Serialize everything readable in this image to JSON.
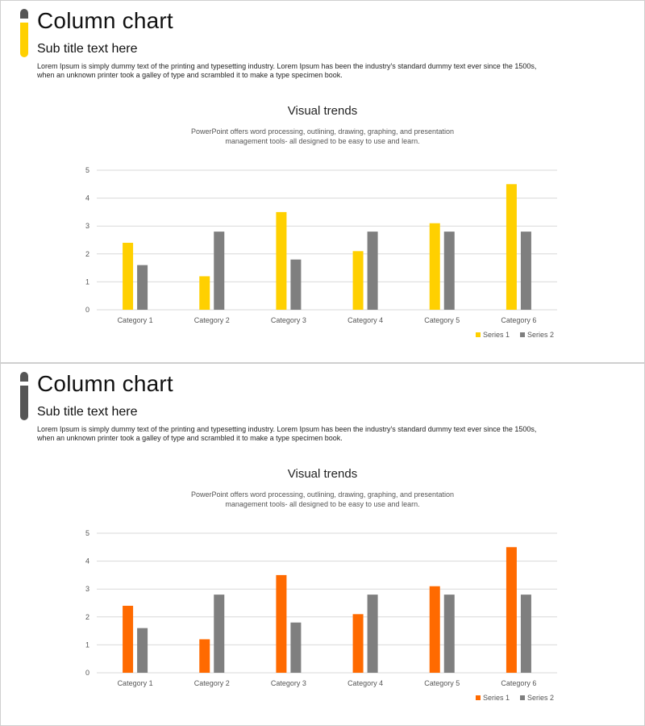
{
  "slides": [
    {
      "title": "Column chart",
      "subtitle": "Sub title text here",
      "body_line1": "Lorem Ipsum is simply dummy text of the printing and typesetting industry. Lorem Ipsum has been the industry's standard dummy text ever since the 1500s,",
      "body_line2": "when an unknown printer took a galley of type and scrambled it to make a type specimen book.",
      "chart_title": "Visual trends",
      "chart_desc_line1": "PowerPoint offers word processing, outlining, drawing, graphing, and presentation",
      "chart_desc_line2": "management tools- all designed to be easy to use and learn.",
      "accent_colors": {
        "top": "#555555",
        "bottom": "#FFD000"
      }
    },
    {
      "title": "Column chart",
      "subtitle": "Sub title text here",
      "body_line1": "Lorem Ipsum is simply dummy text of the printing and typesetting industry. Lorem Ipsum has been the industry's standard dummy text ever since the 1500s,",
      "body_line2": "when an unknown printer took a galley of type and scrambled it to make a type specimen book.",
      "chart_title": "Visual trends",
      "chart_desc_line1": "PowerPoint offers word processing, outlining, drawing, graphing, and presentation",
      "chart_desc_line2": "management tools- all designed to be easy to use and learn.",
      "accent_colors": {
        "top": "#555555",
        "bottom": "#555555"
      }
    }
  ],
  "chart_data": [
    {
      "type": "bar",
      "title": "Visual trends",
      "categories": [
        "Category 1",
        "Category 2",
        "Category 3",
        "Category 4",
        "Category 5",
        "Category 6"
      ],
      "series": [
        {
          "name": "Series 1",
          "values": [
            2.4,
            1.2,
            3.5,
            2.1,
            3.1,
            4.5
          ],
          "color": "#FFD000"
        },
        {
          "name": "Series 2",
          "values": [
            1.6,
            2.8,
            1.8,
            2.8,
            2.8,
            2.8
          ],
          "color": "#7F7F7F"
        }
      ],
      "yticks": [
        "0",
        "1",
        "2",
        "3",
        "4",
        "5"
      ],
      "ylim": [
        0,
        5
      ],
      "grid": true,
      "legend": "bottom-right"
    },
    {
      "type": "bar",
      "title": "Visual trends",
      "categories": [
        "Category 1",
        "Category 2",
        "Category 3",
        "Category 4",
        "Category 5",
        "Category 6"
      ],
      "series": [
        {
          "name": "Series 1",
          "values": [
            2.4,
            1.2,
            3.5,
            2.1,
            3.1,
            4.5
          ],
          "color": "#FF6A00"
        },
        {
          "name": "Series 2",
          "values": [
            1.6,
            2.8,
            1.8,
            2.8,
            2.8,
            2.8
          ],
          "color": "#7F7F7F"
        }
      ],
      "yticks": [
        "0",
        "1",
        "2",
        "3",
        "4",
        "5"
      ],
      "ylim": [
        0,
        5
      ],
      "grid": true,
      "legend": "bottom-right"
    }
  ]
}
